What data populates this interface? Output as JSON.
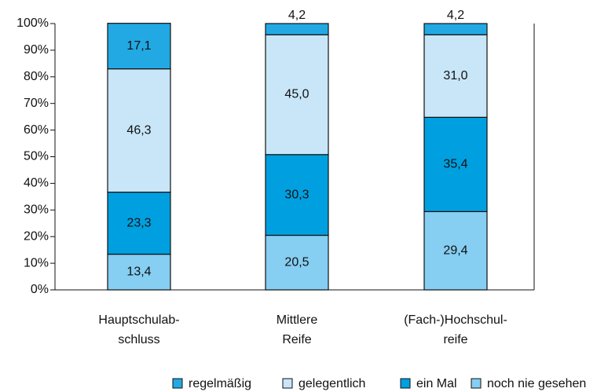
{
  "chart_data": {
    "type": "stacked_bar",
    "categories": [
      [
        "Hauptschulab-",
        "schluss"
      ],
      [
        "Mittlere",
        "Reife"
      ],
      [
        "(Fach-)Hochschul-",
        "reife"
      ]
    ],
    "series": [
      {
        "name": "noch nie gesehen",
        "color": "#86cef2",
        "values": [
          13.4,
          20.5,
          29.4
        ],
        "value_labels": [
          "13,4",
          "20,5",
          "29,4"
        ]
      },
      {
        "name": "ein Mal",
        "color": "#00a0e0",
        "values": [
          23.3,
          30.3,
          35.4
        ],
        "value_labels": [
          "23,3",
          "30,3",
          "35,4"
        ]
      },
      {
        "name": "gelegentlich",
        "color": "#c8e6f8",
        "values": [
          46.3,
          45.0,
          31.0
        ],
        "value_labels": [
          "46,3",
          "45,0",
          "31,0"
        ]
      },
      {
        "name": "regelmäßig",
        "color": "#22a9e4",
        "values": [
          17.1,
          4.2,
          4.2
        ],
        "value_labels": [
          "17,1",
          "4,2",
          "4,2"
        ]
      }
    ],
    "ylim": [
      0,
      100
    ],
    "yticks": [
      {
        "value": 0,
        "label": "0%"
      },
      {
        "value": 10,
        "label": "10%"
      },
      {
        "value": 20,
        "label": "20%"
      },
      {
        "value": 30,
        "label": "30%"
      },
      {
        "value": 40,
        "label": "40%"
      },
      {
        "value": 50,
        "label": "50%"
      },
      {
        "value": 60,
        "label": "60%"
      },
      {
        "value": 70,
        "label": "70%"
      },
      {
        "value": 80,
        "label": "80%"
      },
      {
        "value": 90,
        "label": "90%"
      },
      {
        "value": 100,
        "label": "100%"
      }
    ]
  }
}
